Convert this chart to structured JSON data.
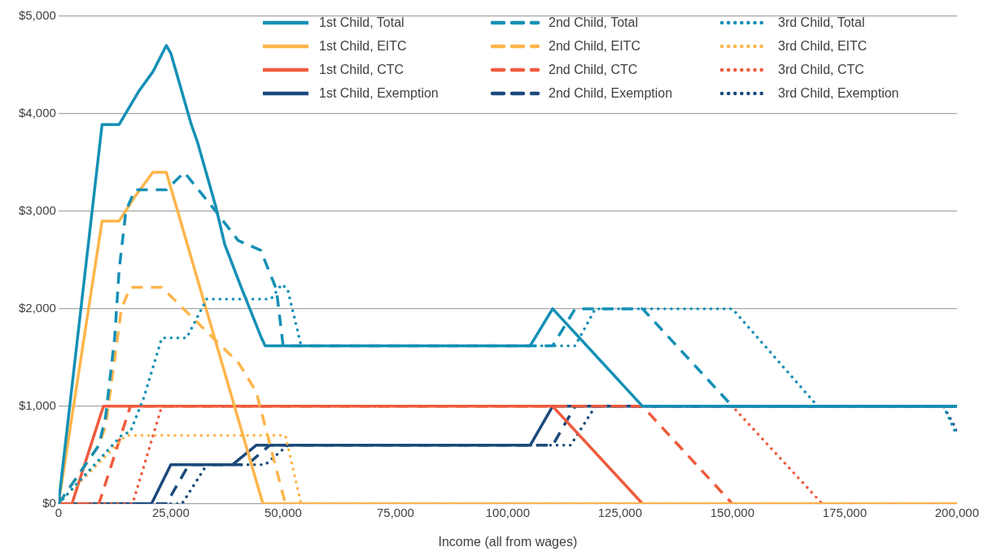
{
  "chart_data": {
    "type": "line",
    "xlabel": "Income (all from wages)",
    "xlim": [
      0,
      200000
    ],
    "ylim": [
      0,
      5000
    ],
    "xticks": [
      0,
      {
        "value": 25000,
        "label": "25,000"
      },
      {
        "value": 50000,
        "label": "50,000"
      },
      {
        "value": 75000,
        "label": "75,000"
      },
      {
        "value": 100000,
        "label": "100,000"
      },
      {
        "value": 125000,
        "label": "125,000"
      },
      {
        "value": 150000,
        "label": "150,000"
      },
      {
        "value": 175000,
        "label": "175,000"
      },
      {
        "value": 200000,
        "label": "200,000"
      }
    ],
    "yticks": [
      {
        "value": 0,
        "label": "$0"
      },
      {
        "value": 1000,
        "label": "$1,000"
      },
      {
        "value": 2000,
        "label": "$2,000"
      },
      {
        "value": 3000,
        "label": "$3,000"
      },
      {
        "value": 4000,
        "label": "$4,000"
      },
      {
        "value": 5000,
        "label": "$5,000"
      }
    ],
    "grid": "y",
    "legend": "top right",
    "marker": "none",
    "series": [
      {
        "name": "1st Child, Total",
        "color": "#1490b5",
        "line_style": "solid",
        "x": [
          0,
          9700,
          13500,
          18000,
          21000,
          24000,
          25000,
          29500,
          31000,
          35000,
          37000,
          40500,
          45000,
          46000,
          105000,
          110000,
          130000,
          200000
        ],
        "values": [
          0,
          3890,
          3890,
          4240,
          4430,
          4700,
          4620,
          3900,
          3700,
          3050,
          2660,
          2240,
          1720,
          1620,
          1620,
          2000,
          1000,
          1000
        ]
      },
      {
        "name": "2nd Child, Total",
        "color": "#1490b5",
        "line_style": "dashed",
        "x": [
          0,
          9000,
          10500,
          12500,
          13500,
          15000,
          17000,
          24000,
          28000,
          35000,
          40000,
          43000,
          45000,
          48500,
          50000,
          110000,
          115000,
          130000,
          150000,
          200000
        ],
        "values": [
          0,
          600,
          900,
          1700,
          2400,
          3000,
          3220,
          3220,
          3400,
          3000,
          2700,
          2640,
          2600,
          2200,
          1620,
          1620,
          2000,
          2000,
          1000,
          1000
        ]
      },
      {
        "name": "3rd Child, Total",
        "color": "#1490b5",
        "line_style": "dotted",
        "x": [
          0,
          14000,
          16000,
          19000,
          23000,
          28500,
          33000,
          47300,
          49700,
          51000,
          54000,
          115000,
          119500,
          150000,
          169000,
          197000,
          200000
        ],
        "values": [
          0,
          700,
          740,
          1090,
          1700,
          1700,
          2100,
          2100,
          2250,
          2200,
          1620,
          1620,
          2000,
          2000,
          1000,
          1000,
          700
        ]
      },
      {
        "name": "1st Child, EITC",
        "color": "#fdb54a",
        "line_style": "solid",
        "x": [
          0,
          9700,
          13500,
          17000,
          21000,
          24000,
          45500,
          200000
        ],
        "values": [
          0,
          2900,
          2900,
          3150,
          3400,
          3400,
          0,
          0
        ]
      },
      {
        "name": "2nd Child, EITC",
        "color": "#fdb54a",
        "line_style": "dashed",
        "x": [
          0,
          9000,
          10500,
          14000,
          16000,
          23000,
          30000,
          40000,
          44000,
          50500,
          200000
        ],
        "values": [
          0,
          600,
          800,
          2000,
          2220,
          2220,
          1900,
          1450,
          1150,
          0,
          0
        ]
      },
      {
        "name": "3rd Child, EITC",
        "color": "#fdb54a",
        "line_style": "dotted",
        "x": [
          0,
          15000,
          50500,
          54000,
          200000
        ],
        "values": [
          0,
          700,
          700,
          0,
          0
        ]
      },
      {
        "name": "1st Child, CTC",
        "color": "#ef5b3d",
        "line_style": "solid",
        "x": [
          0,
          3000,
          10000,
          110000,
          130000,
          200000
        ],
        "values": [
          0,
          0,
          1000,
          1000,
          0,
          0
        ]
      },
      {
        "name": "2nd Child, CTC",
        "color": "#ef5b3d",
        "line_style": "dashed",
        "x": [
          0,
          9000,
          16000,
          130000,
          150000,
          200000
        ],
        "values": [
          0,
          0,
          1000,
          1000,
          0,
          0
        ]
      },
      {
        "name": "3rd Child, CTC",
        "color": "#ef5b3d",
        "line_style": "dotted",
        "x": [
          0,
          16500,
          23000,
          150000,
          170000,
          200000
        ],
        "values": [
          0,
          0,
          1000,
          1000,
          0,
          0
        ]
      },
      {
        "name": "1st Child, Exemption",
        "color": "#1b4a7c",
        "line_style": "solid",
        "x": [
          0,
          20700,
          25000,
          38700,
          44000,
          105000,
          110000,
          200000
        ],
        "values": [
          0,
          0,
          400,
          400,
          600,
          600,
          1000,
          1000
        ]
      },
      {
        "name": "2nd Child, Exemption",
        "color": "#1b4a7c",
        "line_style": "dashed",
        "x": [
          0,
          24000,
          29000,
          42000,
          47000,
          110000,
          115000,
          200000
        ],
        "values": [
          0,
          0,
          400,
          400,
          600,
          600,
          1000,
          1000
        ]
      },
      {
        "name": "3rd Child, Exemption",
        "color": "#1b4a7c",
        "line_style": "dotted",
        "x": [
          0,
          27500,
          33000,
          46000,
          51000,
          114000,
          119500,
          197000,
          200000
        ],
        "values": [
          0,
          0,
          400,
          400,
          600,
          600,
          1000,
          1000,
          750
        ]
      }
    ]
  }
}
